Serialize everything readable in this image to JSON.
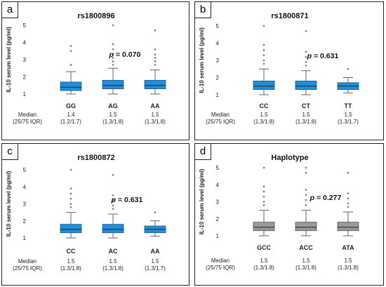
{
  "chart_data": [
    {
      "type": "box",
      "panel_label": "a",
      "title": "rs1800896",
      "ylabel": "IL-10 serum level (pg/ml)",
      "ylim": [
        1,
        5
      ],
      "yticks": [
        "1",
        "2",
        "3",
        "4",
        "5"
      ],
      "categories": [
        "GG",
        "AG",
        "AA"
      ],
      "color": "#1f8fdc",
      "boxes": [
        {
          "min": 1.0,
          "q1": 1.2,
          "median": 1.4,
          "q3": 1.7,
          "max": 2.3,
          "outliers": [
            2.7,
            3.5,
            3.8
          ]
        },
        {
          "min": 1.0,
          "q1": 1.3,
          "median": 1.5,
          "q3": 1.8,
          "max": 2.5,
          "outliers": [
            2.7,
            2.9,
            3.1,
            3.3,
            3.6,
            3.9,
            5.0
          ]
        },
        {
          "min": 1.0,
          "q1": 1.3,
          "median": 1.5,
          "q3": 1.8,
          "max": 2.4,
          "outliers": [
            2.7,
            2.9,
            3.1,
            3.3,
            3.6,
            4.7
          ]
        }
      ],
      "p_label": "p",
      "p_value": " = 0.070",
      "median_header": [
        "Median",
        "(25/75 IQR)"
      ],
      "medians": [
        [
          "1.4",
          "(1.2/1.7)"
        ],
        [
          "1.5",
          "(1.3/1.8)"
        ],
        [
          "1.5",
          "(1.3/1.8)"
        ]
      ]
    },
    {
      "type": "box",
      "panel_label": "b",
      "title": "rs1800871",
      "ylabel": "IL-10 serum level (pg/ml)",
      "ylim": [
        1,
        5
      ],
      "yticks": [
        "1",
        "2",
        "3",
        "4",
        "5"
      ],
      "categories": [
        "CC",
        "CT",
        "TT"
      ],
      "color": "#1f8fdc",
      "boxes": [
        {
          "min": 1.0,
          "q1": 1.3,
          "median": 1.5,
          "q3": 1.8,
          "max": 2.5,
          "outliers": [
            2.8,
            3.0,
            3.3,
            3.6,
            3.9,
            5.0
          ]
        },
        {
          "min": 1.0,
          "q1": 1.3,
          "median": 1.5,
          "q3": 1.8,
          "max": 2.4,
          "outliers": [
            2.7,
            2.9,
            3.2,
            3.5,
            4.7
          ]
        },
        {
          "min": 1.1,
          "q1": 1.3,
          "median": 1.5,
          "q3": 1.7,
          "max": 2.0,
          "outliers": [
            2.5
          ]
        }
      ],
      "p_label": "p",
      "p_value": " = 0.631",
      "median_header": [
        "Median",
        "(25/75 IQR)"
      ],
      "medians": [
        [
          "1.5",
          "(1.3/1.8)"
        ],
        [
          "1.5",
          "(1.3/1.8)"
        ],
        [
          "1.5",
          "(1.3/1.7)"
        ]
      ]
    },
    {
      "type": "box",
      "panel_label": "c",
      "title": "rs1800872",
      "ylabel": "IL-10 serum level (pg/ml)",
      "ylim": [
        1,
        5
      ],
      "yticks": [
        "1",
        "2",
        "3",
        "4",
        "5"
      ],
      "categories": [
        "CC",
        "AC",
        "AA"
      ],
      "color": "#1f8fdc",
      "boxes": [
        {
          "min": 1.0,
          "q1": 1.3,
          "median": 1.5,
          "q3": 1.8,
          "max": 2.5,
          "outliers": [
            2.8,
            3.0,
            3.3,
            3.6,
            3.9,
            5.0
          ]
        },
        {
          "min": 1.0,
          "q1": 1.3,
          "median": 1.5,
          "q3": 1.8,
          "max": 2.4,
          "outliers": [
            2.7,
            2.9,
            3.2,
            3.5,
            4.7
          ]
        },
        {
          "min": 1.1,
          "q1": 1.3,
          "median": 1.5,
          "q3": 1.7,
          "max": 2.0,
          "outliers": [
            2.5
          ]
        }
      ],
      "p_label": "p",
      "p_value": " = 0.631",
      "median_header": [
        "Median",
        "(25/75 IQR)"
      ],
      "medians": [
        [
          "1.5",
          "(1.3/1.8)"
        ],
        [
          "1.5",
          "(1.3/1.8)"
        ],
        [
          "1.5",
          "(1.3/1.7)"
        ]
      ]
    },
    {
      "type": "box",
      "panel_label": "d",
      "title": "Haplotype",
      "ylabel": "IL-10 serum level (pg/ml)",
      "ylim": [
        1,
        5
      ],
      "yticks": [
        "1",
        "2",
        "3",
        "4",
        "5"
      ],
      "categories": [
        "GCC",
        "ACC",
        "ATA"
      ],
      "color": "#9a9a9a",
      "boxes": [
        {
          "min": 1.0,
          "q1": 1.3,
          "median": 1.5,
          "q3": 1.8,
          "max": 2.5,
          "outliers": [
            2.8,
            3.0,
            3.3,
            3.6,
            3.9,
            5.0
          ]
        },
        {
          "min": 1.0,
          "q1": 1.3,
          "median": 1.5,
          "q3": 1.8,
          "max": 2.5,
          "outliers": [
            2.8,
            3.1,
            3.4,
            3.7,
            4.7,
            5.0
          ]
        },
        {
          "min": 1.0,
          "q1": 1.3,
          "median": 1.5,
          "q3": 1.8,
          "max": 2.4,
          "outliers": [
            2.7,
            2.9,
            3.2,
            3.5,
            4.7
          ]
        }
      ],
      "p_label": "p",
      "p_value": " = 0.277",
      "median_header": [
        "Median",
        "(25/75 IQR)"
      ],
      "medians": [
        [
          "1.5",
          "(1.3/1.8)"
        ],
        [
          "1.5",
          "(1.3/1.8)"
        ],
        [
          "1.5",
          "(1.3/1.8)"
        ]
      ]
    }
  ]
}
